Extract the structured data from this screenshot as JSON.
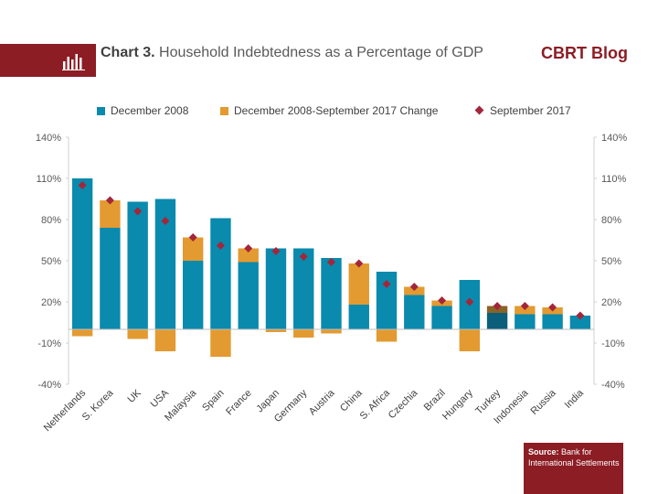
{
  "header": {
    "chart_label": "Chart 3.",
    "title_text": "Household Indebtedness as a Percentage of GDP",
    "brand": "CBRT Blog"
  },
  "source": {
    "label": "Source:",
    "text_line1": "Bank for",
    "text_line2": "International Settlements"
  },
  "colors": {
    "dec2008": "#0a8aad",
    "change": "#e39a31",
    "sep2017": "#a3263a",
    "turkey_highlight": "#0b5f7a",
    "turkey_change": "#8a6326",
    "accent": "#8c1d24"
  },
  "chart_data": {
    "type": "bar",
    "categories": [
      "Netherlands",
      "S. Korea",
      "UK",
      "USA",
      "Malaysia",
      "Spain",
      "France",
      "Japan",
      "Germany",
      "Austria",
      "China",
      "S. Africa",
      "Czechia",
      "Brazil",
      "Hungary",
      "Turkey",
      "Indonesia",
      "Russia",
      "India"
    ],
    "series": [
      {
        "name": "December 2008",
        "values": [
          110,
          74,
          93,
          95,
          50,
          81,
          49,
          59,
          59,
          52,
          18,
          42,
          25,
          17,
          36,
          12,
          11,
          11,
          10
        ]
      },
      {
        "name": "December 2008-September 2017 Change",
        "values": [
          -5,
          20,
          -7,
          -16,
          17,
          -20,
          10,
          -2,
          -6,
          -3,
          30,
          -9,
          6,
          4,
          -16,
          5,
          6,
          5,
          0
        ]
      },
      {
        "name": "September 2017",
        "values": [
          105,
          94,
          86,
          79,
          67,
          61,
          59,
          57,
          53,
          49,
          48,
          33,
          31,
          21,
          20,
          17,
          17,
          16,
          10
        ]
      }
    ],
    "highlight_category": "Turkey",
    "ylim": [
      -40,
      140
    ],
    "yticks": [
      -40,
      -10,
      20,
      50,
      80,
      110,
      140
    ],
    "tick_suffix": "%",
    "dual_axis": true,
    "grid": false,
    "legend": "top"
  }
}
